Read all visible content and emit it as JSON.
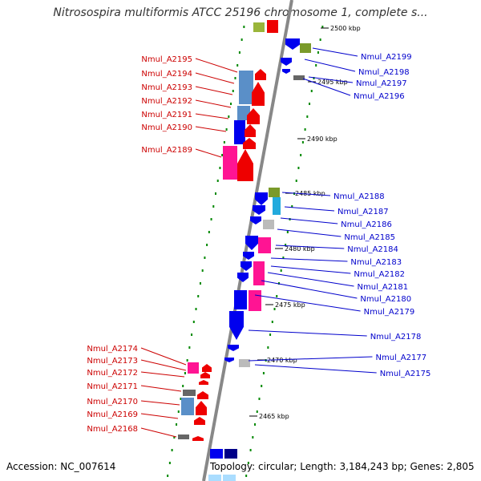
{
  "title": "Nitrosospira multiformis ATCC 25196 chromosome 1, complete s...",
  "footer": {
    "accession": "Accession: NC_007614",
    "topology": "Topology: circular; Length: 3,184,243 bp; Genes: 2,805"
  },
  "colors": {
    "left_labels": "#cc0000",
    "right_labels": "#0000cc",
    "backbone": "#888888",
    "ticks": "#008800"
  },
  "kbp_labels": [
    "2500 kbp",
    "2495 kbp",
    "2490 kbp",
    "2485 kbp",
    "2480 kbp",
    "2475 kbp",
    "2470 kbp",
    "2465 kbp"
  ],
  "left_genes": [
    "Nmul_A2195",
    "Nmul_A2194",
    "Nmul_A2193",
    "Nmul_A2192",
    "Nmul_A2191",
    "Nmul_A2190",
    "Nmul_A2189",
    "Nmul_A2174",
    "Nmul_A2173",
    "Nmul_A2172",
    "Nmul_A2171",
    "Nmul_A2170",
    "Nmul_A2169",
    "Nmul_A2168"
  ],
  "right_genes": [
    "Nmul_A2199",
    "Nmul_A2198",
    "Nmul_A2197",
    "Nmul_A2196",
    "Nmul_A2188",
    "Nmul_A2187",
    "Nmul_A2186",
    "Nmul_A2185",
    "Nmul_A2184",
    "Nmul_A2183",
    "Nmul_A2182",
    "Nmul_A2181",
    "Nmul_A2180",
    "Nmul_A2179",
    "Nmul_A2178",
    "Nmul_A2177",
    "Nmul_A2175"
  ]
}
